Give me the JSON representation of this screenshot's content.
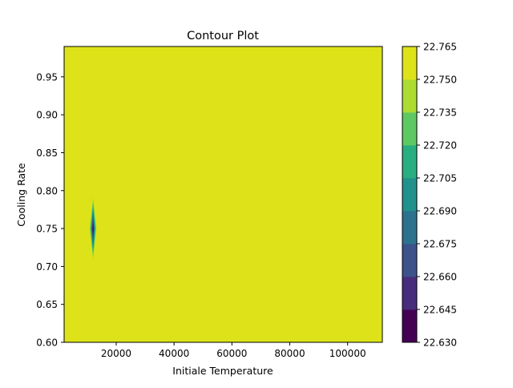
{
  "chart_data": {
    "type": "contour",
    "title": "Contour Plot",
    "xlabel": "Initiale Temperature",
    "ylabel": "Cooling Rate",
    "xlim": [
      2000,
      112000
    ],
    "ylim": [
      0.6,
      0.99
    ],
    "x_ticks": [
      20000,
      40000,
      60000,
      80000,
      100000
    ],
    "x_tick_labels": [
      "20000",
      "40000",
      "60000",
      "80000",
      "100000"
    ],
    "y_ticks": [
      0.6,
      0.65,
      0.7,
      0.75,
      0.8,
      0.85,
      0.9,
      0.95
    ],
    "y_tick_labels": [
      "0.60",
      "0.65",
      "0.70",
      "0.75",
      "0.80",
      "0.85",
      "0.90",
      "0.95"
    ],
    "grid": false,
    "colorbar": {
      "position": "right",
      "levels": [
        22.63,
        22.645,
        22.66,
        22.675,
        22.69,
        22.705,
        22.72,
        22.735,
        22.75,
        22.765
      ],
      "tick_labels": [
        "22.630",
        "22.645",
        "22.660",
        "22.675",
        "22.690",
        "22.705",
        "22.720",
        "22.735",
        "22.750",
        "22.765"
      ],
      "colors": [
        "#440154",
        "#472d7b",
        "#3b528b",
        "#2c728e",
        "#21918c",
        "#28ae80",
        "#5ec962",
        "#addc30",
        "#dde318"
      ]
    },
    "background_level_range": [
      22.75,
      22.765
    ],
    "features": [
      {
        "kind": "local-minimum",
        "x": 12000,
        "y": 0.75,
        "value_min": 22.63,
        "x_half_width": 1200,
        "y_half_width": 0.042
      }
    ]
  }
}
